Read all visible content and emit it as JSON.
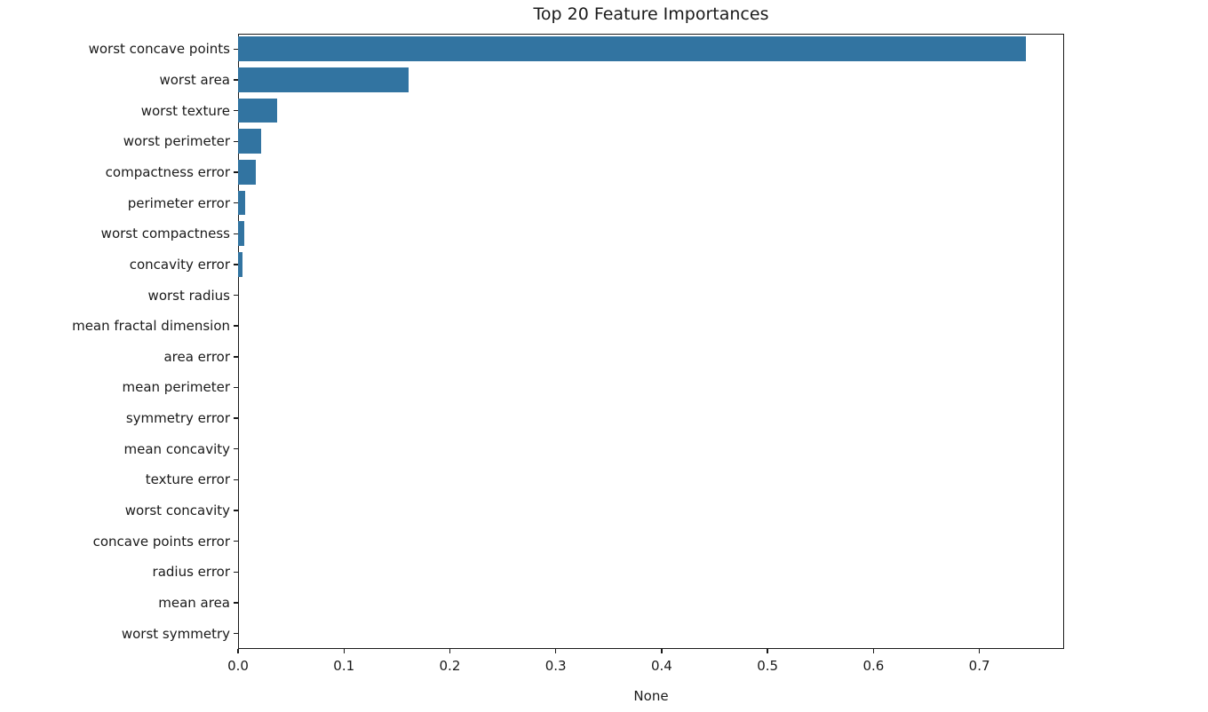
{
  "chart_data": {
    "type": "bar",
    "orientation": "horizontal",
    "title": "Top 20 Feature Importances",
    "xlabel": "None",
    "ylabel": "",
    "categories": [
      "worst concave points",
      "worst area",
      "worst texture",
      "worst perimeter",
      "compactness error",
      "perimeter error",
      "worst compactness",
      "concavity error",
      "worst radius",
      "mean fractal dimension",
      "area error",
      "mean perimeter",
      "symmetry error",
      "mean concavity",
      "texture error",
      "worst concavity",
      "concave points error",
      "radius error",
      "mean area",
      "worst symmetry"
    ],
    "values": [
      0.744,
      0.161,
      0.037,
      0.022,
      0.017,
      0.007,
      0.006,
      0.004,
      0.0,
      0.0,
      0.0,
      0.0,
      0.0,
      0.0,
      0.0,
      0.0,
      0.0,
      0.0,
      0.0,
      0.0
    ],
    "xticks": [
      0.0,
      0.1,
      0.2,
      0.3,
      0.4,
      0.5,
      0.6,
      0.7
    ],
    "xtick_labels": [
      "0.0",
      "0.1",
      "0.2",
      "0.3",
      "0.4",
      "0.5",
      "0.6",
      "0.7"
    ],
    "xlim": [
      0.0,
      0.78
    ],
    "grid": false,
    "legend": "none",
    "bar_color": "#3274a1",
    "axis_color": "#1a1a1a"
  }
}
